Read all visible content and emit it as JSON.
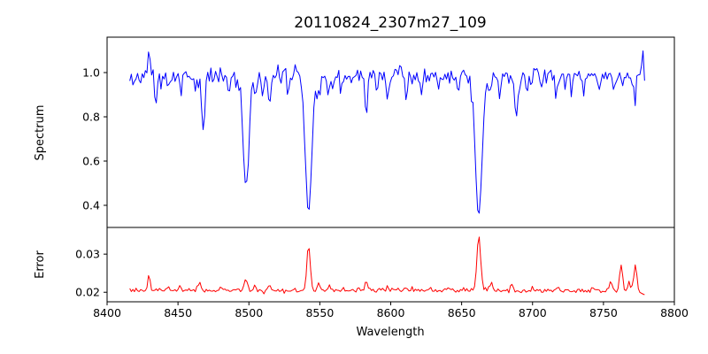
{
  "chart_data": {
    "type": "line",
    "title": "20110824_2307m27_109",
    "xlabel": "Wavelength",
    "legend": "none",
    "grid": false,
    "xlim": [
      8400,
      8800
    ],
    "xticks": [
      8400,
      8450,
      8500,
      8550,
      8600,
      8650,
      8700,
      8750,
      8800
    ],
    "xtick_labels": [
      "8400",
      "8450",
      "8500",
      "8550",
      "8600",
      "8650",
      "8700",
      "8750",
      "8800"
    ],
    "axis_color": "#000000",
    "spectrum_absorption_lines": [
      {
        "wavelength": 8498,
        "min_value": 0.47
      },
      {
        "wavelength": 8542,
        "min_value": 0.36
      },
      {
        "wavelength": 8662,
        "min_value": 0.35
      },
      {
        "wavelength": 8688,
        "min_value": 0.79
      }
    ],
    "error_peaks": [
      {
        "wavelength": 8430,
        "value": 0.0245
      },
      {
        "wavelength": 8465,
        "value": 0.0225
      },
      {
        "wavelength": 8498,
        "value": 0.023
      },
      {
        "wavelength": 8542,
        "value": 0.033
      },
      {
        "wavelength": 8662,
        "value": 0.0355
      },
      {
        "wavelength": 8762,
        "value": 0.028
      },
      {
        "wavelength": 8772,
        "value": 0.028
      }
    ],
    "panels": [
      {
        "name": "spectrum",
        "ylabel": "Spectrum",
        "color": "#0000ff",
        "ylim": [
          0.3,
          1.16
        ],
        "yticks": [
          0.4,
          0.6,
          0.8,
          1.0
        ],
        "ytick_labels": [
          "0.4",
          "0.6",
          "0.8",
          "1.0"
        ],
        "series_spec": {
          "seed": 11,
          "x_start": 8416,
          "x_end": 8780,
          "step": 1.1,
          "baseline": 0.982,
          "noise_sigma": 0.017,
          "spike_prob": 0.08,
          "spike_amp": 0.06,
          "spike_sign": -1,
          "clamp": [
            0.305,
            1.155
          ],
          "features": [
            [
              8429.5,
              0.13,
              0.7
            ],
            [
              8434.5,
              -0.12,
              0.9
            ],
            [
              8443,
              -0.07,
              0.8
            ],
            [
              8452,
              -0.08,
              0.7
            ],
            [
              8462.5,
              -0.06,
              0.6
            ],
            [
              8468,
              -0.26,
              0.9
            ],
            [
              8486,
              -0.07,
              0.7
            ],
            [
              8498.0,
              -0.52,
              2.0
            ],
            [
              8504.5,
              -0.12,
              0.8
            ],
            [
              8510,
              -0.08,
              0.7
            ],
            [
              8514.5,
              -0.15,
              0.8
            ],
            [
              8521,
              0.07,
              0.6
            ],
            [
              8527.5,
              -0.09,
              0.7
            ],
            [
              8533,
              0.08,
              0.6
            ],
            [
              8542.1,
              -0.625,
              2.3
            ],
            [
              8548.5,
              -0.11,
              0.7
            ],
            [
              8556,
              -0.08,
              0.7
            ],
            [
              8565,
              -0.06,
              0.6
            ],
            [
              8582.5,
              -0.16,
              0.8
            ],
            [
              8590.5,
              -0.07,
              0.6
            ],
            [
              8598,
              -0.1,
              0.7
            ],
            [
              8611,
              -0.08,
              0.7
            ],
            [
              8621.5,
              -0.07,
              0.7
            ],
            [
              8634,
              -0.06,
              0.6
            ],
            [
              8648,
              -0.08,
              0.7
            ],
            [
              8662.1,
              -0.635,
              2.3
            ],
            [
              8670,
              -0.09,
              0.8
            ],
            [
              8677,
              -0.07,
              0.7
            ],
            [
              8688.6,
              -0.21,
              1.1
            ],
            [
              8696,
              -0.06,
              0.6
            ],
            [
              8706,
              -0.06,
              0.6
            ],
            [
              8717,
              -0.09,
              0.7
            ],
            [
              8727.5,
              -0.07,
              0.6
            ],
            [
              8736,
              -0.08,
              0.7
            ],
            [
              8747,
              -0.06,
              0.6
            ],
            [
              8757.5,
              -0.09,
              0.7
            ],
            [
              8764,
              -0.07,
              0.6
            ],
            [
              8772,
              -0.08,
              0.6
            ],
            [
              8777.5,
              0.11,
              0.7
            ]
          ]
        }
      },
      {
        "name": "error",
        "ylabel": "Error",
        "color": "#ff0000",
        "ylim": [
          0.0175,
          0.037
        ],
        "yticks": [
          0.02,
          0.03
        ],
        "ytick_labels": [
          "0.02",
          "0.03"
        ],
        "series_spec": {
          "seed": 23,
          "x_start": 8416,
          "x_end": 8780,
          "step": 1.1,
          "baseline": 0.0204,
          "noise_sigma": 0.0003,
          "spike_prob": 0.05,
          "spike_amp": 0.0008,
          "spike_sign": 1,
          "clamp": [
            0.0178,
            0.0368
          ],
          "features": [
            [
              8429.5,
              0.0042,
              0.8
            ],
            [
              8443,
              0.0008,
              0.7
            ],
            [
              8451.5,
              0.0013,
              0.8
            ],
            [
              8465,
              0.0022,
              1.0
            ],
            [
              8480,
              0.0007,
              0.8
            ],
            [
              8498,
              0.0026,
              1.2
            ],
            [
              8504.5,
              0.0015,
              0.8
            ],
            [
              8514.5,
              0.0012,
              0.8
            ],
            [
              8542.1,
              0.0122,
              1.2
            ],
            [
              8549,
              0.0022,
              0.8
            ],
            [
              8557,
              0.0016,
              0.8
            ],
            [
              8566.5,
              0.0009,
              0.8
            ],
            [
              8583,
              0.002,
              0.9
            ],
            [
              8598,
              0.001,
              0.8
            ],
            [
              8611.5,
              0.0008,
              0.8
            ],
            [
              8628,
              0.0007,
              0.8
            ],
            [
              8641,
              0.0007,
              0.8
            ],
            [
              8662.1,
              0.0148,
              1.3
            ],
            [
              8671,
              0.0022,
              0.9
            ],
            [
              8685.5,
              0.0018,
              0.9
            ],
            [
              8700,
              0.0008,
              0.8
            ],
            [
              8717,
              0.0007,
              0.8
            ],
            [
              8742,
              0.001,
              0.8
            ],
            [
              8755,
              0.003,
              1.0
            ],
            [
              8762.5,
              0.007,
              1.0
            ],
            [
              8768,
              0.0018,
              0.7
            ],
            [
              8772.5,
              0.007,
              1.0
            ],
            [
              8778.5,
              -0.0014,
              1.2
            ]
          ]
        }
      }
    ]
  }
}
